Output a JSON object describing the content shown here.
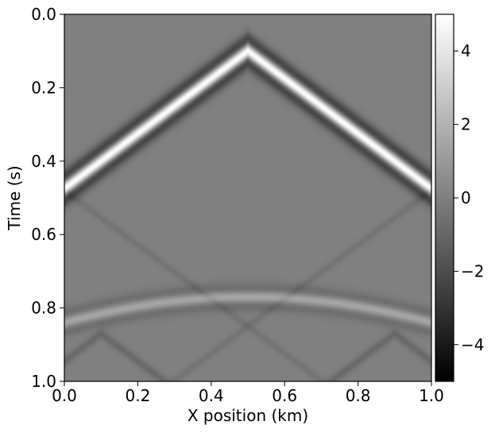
{
  "chart_data": {
    "type": "heatmap",
    "title": "",
    "xlabel": "X position (km)",
    "ylabel": "Time (s)",
    "xlim": [
      0.0,
      1.0
    ],
    "ylim": [
      1.0,
      0.0
    ],
    "y_inverted": true,
    "colormap": "gray",
    "colorbar": {
      "range": [
        -5,
        5
      ],
      "ticks": [
        4,
        2,
        0,
        -2,
        -4
      ],
      "tick_labels": [
        "4",
        "2",
        "0",
        "−2",
        "−4"
      ]
    },
    "x_ticks": [
      0.0,
      0.2,
      0.4,
      0.6,
      0.8,
      1.0
    ],
    "x_tick_labels": [
      "0.0",
      "0.2",
      "0.4",
      "0.6",
      "0.8",
      "1.0"
    ],
    "y_ticks": [
      0.0,
      0.2,
      0.4,
      0.6,
      0.8,
      1.0
    ],
    "y_tick_labels": [
      "0.0",
      "0.2",
      "0.4",
      "0.6",
      "0.8",
      "1.0"
    ],
    "grid": false,
    "features": [
      {
        "name": "direct arrival",
        "apex_x_km": 0.5,
        "apex_t_s": 0.1,
        "slope_s_per_km": 0.75,
        "amplitude": 5
      },
      {
        "name": "reflection hyperbola",
        "apex_x_km": 0.5,
        "apex_t_s": 0.77,
        "edge_t_s": 0.84,
        "amplitude": 1.5
      },
      {
        "name": "boundary-reflected arrivals",
        "points_x_km": [
          0.0,
          0.5,
          1.0
        ],
        "points_t_s": [
          0.48,
          0.85,
          0.48
        ],
        "amplitude": -0.5
      }
    ]
  }
}
